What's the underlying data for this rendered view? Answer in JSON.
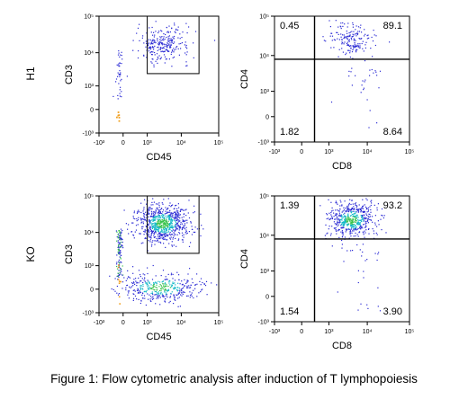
{
  "figure": {
    "caption": "Figure 1: Flow cytometric analysis after induction of T lymphopoiesis"
  },
  "chart_data": [
    {
      "type": "scatter",
      "panel": "H1 CD3 vs CD45",
      "row_label": "H1",
      "xlabel": "CD45",
      "ylabel": "CD3",
      "x_scale": "biexponential",
      "y_scale": "biexponential",
      "x_ticks": [
        "-10³",
        "0",
        "10³",
        "10⁴",
        "10⁵"
      ],
      "y_ticks": [
        "10⁵",
        "10⁴",
        "10³",
        "0",
        "-10³"
      ],
      "gate": {
        "x": [
          1000,
          30000
        ],
        "y": [
          2500,
          100000
        ]
      }
    },
    {
      "type": "scatter",
      "panel": "H1 CD4 vs CD8",
      "row_label": "H1",
      "xlabel": "CD8",
      "ylabel": "CD4",
      "x_scale": "biexponential",
      "y_scale": "biexponential",
      "x_ticks": [
        "-10³",
        "0",
        "10³",
        "10⁴",
        "10⁵"
      ],
      "y_ticks": [
        "10⁵",
        "10⁴",
        "10³",
        "0",
        "-10³"
      ],
      "quadrants": {
        "top_left": "0.45",
        "top_right": "89.1",
        "bottom_left": "1.82",
        "bottom_right": "8.64"
      }
    },
    {
      "type": "scatter",
      "panel": "KO CD3 vs CD45",
      "row_label": "KO",
      "xlabel": "CD45",
      "ylabel": "CD3",
      "x_scale": "biexponential",
      "y_scale": "biexponential",
      "x_ticks": [
        "-10³",
        "0",
        "10³",
        "10⁴",
        "10⁵"
      ],
      "y_ticks": [
        "10⁵",
        "10⁴",
        "10³",
        "0",
        "-10³"
      ],
      "gate": {
        "x": [
          1000,
          30000
        ],
        "y": [
          2500,
          100000
        ]
      }
    },
    {
      "type": "scatter",
      "panel": "KO CD4 vs CD8",
      "row_label": "KO",
      "xlabel": "CD8",
      "ylabel": "CD4",
      "x_scale": "biexponential",
      "y_scale": "biexponential",
      "x_ticks": [
        "-10³",
        "0",
        "10³",
        "10⁴",
        "10⁵"
      ],
      "y_ticks": [
        "10⁵",
        "10⁴",
        "10³",
        "0",
        "-10³"
      ],
      "quadrants": {
        "top_left": "1.39",
        "top_right": "93.2",
        "bottom_left": "1.54",
        "bottom_right": "3.90"
      }
    }
  ],
  "colors": {
    "axis": "#000000",
    "dot_low": "#2a2ad4",
    "dot_mid": "#13b8c7",
    "dot_high": "#38c24a",
    "dot_peak": "#f0a020",
    "gate_line": "#000000"
  }
}
